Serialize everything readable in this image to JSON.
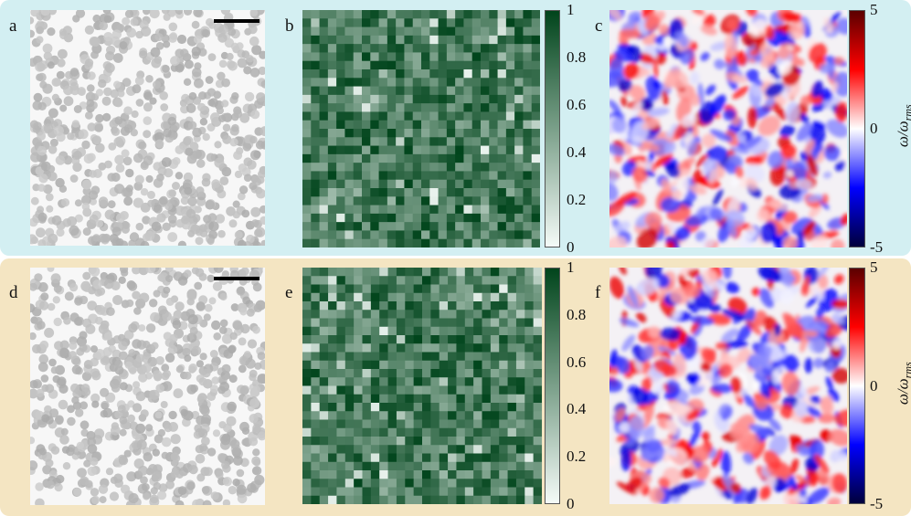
{
  "figure": {
    "background_colors": {
      "top_row": "#d3eff2",
      "bottom_row": "#f4e5c2"
    },
    "rows": [
      {
        "name": "top",
        "panels": [
          {
            "letter": "a",
            "kind": "microscopy",
            "scale_bar": true,
            "particles": "grey disks",
            "seed": 11
          },
          {
            "letter": "b",
            "kind": "heatmap-greens",
            "grid": "28x28",
            "seed": 21,
            "colorbar": {
              "ticks": [
                "1",
                "0.8",
                "0.6",
                "0.4",
                "0.2",
                "0"
              ],
              "min": 0,
              "max": 1,
              "colors": [
                "#f5fbf8",
                "#00441b"
              ]
            }
          },
          {
            "letter": "c",
            "kind": "vorticity-field",
            "seed": 31,
            "colorbar": {
              "ticks": [
                "5",
                "0",
                "-5"
              ],
              "min": -5,
              "max": 5,
              "colors": [
                "#00003a",
                "#0000ff",
                "#ffffff",
                "#ff0000",
                "#5a0000"
              ]
            }
          }
        ]
      },
      {
        "name": "bottom",
        "panels": [
          {
            "letter": "d",
            "kind": "microscopy",
            "scale_bar": true,
            "particles": "grey disks",
            "seed": 13
          },
          {
            "letter": "e",
            "kind": "heatmap-greens",
            "grid": "28x28",
            "seed": 23,
            "colorbar": {
              "ticks": [
                "1",
                "0.8",
                "0.6",
                "0.4",
                "0.2",
                "0"
              ],
              "min": 0,
              "max": 1,
              "colors": [
                "#f5fbf8",
                "#00441b"
              ]
            }
          },
          {
            "letter": "f",
            "kind": "vorticity-field",
            "seed": 37,
            "colorbar": {
              "ticks": [
                "5",
                "0",
                "-5"
              ],
              "min": -5,
              "max": 5,
              "colors": [
                "#00003a",
                "#0000ff",
                "#ffffff",
                "#ff0000",
                "#5a0000"
              ]
            }
          }
        ]
      }
    ],
    "vorticity_colorbar_label": {
      "symbol": "ω/ω",
      "subscript": "rms"
    }
  }
}
